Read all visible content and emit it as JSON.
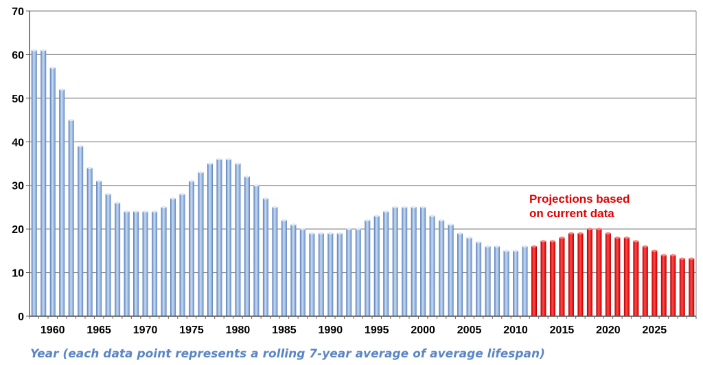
{
  "chart_data": {
    "type": "bar",
    "title": "",
    "xlabel": "Year (each data point represents a rolling 7-year average of average lifespan)",
    "ylabel": "",
    "ylim": [
      0,
      70
    ],
    "yticks": [
      0,
      10,
      20,
      30,
      40,
      50,
      60,
      70
    ],
    "xticks": [
      1960,
      1965,
      1970,
      1975,
      1980,
      1985,
      1990,
      1995,
      2000,
      2005,
      2010,
      2015,
      2020,
      2025
    ],
    "grid": true,
    "annotation": {
      "line1": "Projections based",
      "line2": "on current data",
      "color": "#e00000"
    },
    "colors": {
      "actual": "#7fa3d6",
      "projection": "#e00000",
      "xlabel": "#5b86c5"
    },
    "series": [
      {
        "x": [
          1958,
          1959,
          1960,
          1961,
          1962,
          1963,
          1964,
          1965,
          1966,
          1967,
          1968,
          1969,
          1970,
          1971,
          1972,
          1973,
          1974,
          1975,
          1976,
          1977,
          1978,
          1979,
          1980,
          1981,
          1982,
          1983,
          1984,
          1985,
          1986,
          1987,
          1988,
          1989,
          1990,
          1991,
          1992,
          1993,
          1994,
          1995,
          1996,
          1997,
          1998,
          1999,
          2000,
          2001,
          2002,
          2003,
          2004,
          2005,
          2006,
          2007,
          2008,
          2009,
          2010,
          2011
        ],
        "values": [
          61,
          61,
          57,
          52,
          45,
          39,
          34,
          31,
          28,
          26,
          24,
          24,
          24,
          24,
          25,
          27,
          28,
          31,
          33,
          35,
          36,
          36,
          35,
          32,
          30,
          27,
          25,
          22,
          21,
          20,
          19,
          19,
          19,
          19,
          20,
          20,
          22,
          23,
          24,
          25,
          25,
          25,
          25,
          23,
          22,
          21,
          19,
          18,
          17,
          16,
          16,
          15,
          15,
          16
        ]
      },
      {
        "x": [
          2012,
          2013,
          2014,
          2015,
          2016,
          2017,
          2018,
          2019,
          2020,
          2021,
          2022,
          2023,
          2024,
          2025,
          2026,
          2027,
          2028,
          2029
        ],
        "values": [
          16,
          17.2,
          17.2,
          18,
          19,
          19,
          20,
          20,
          19,
          18,
          18,
          17.2,
          16,
          15,
          14,
          14,
          13.2,
          13.2
        ]
      }
    ]
  }
}
